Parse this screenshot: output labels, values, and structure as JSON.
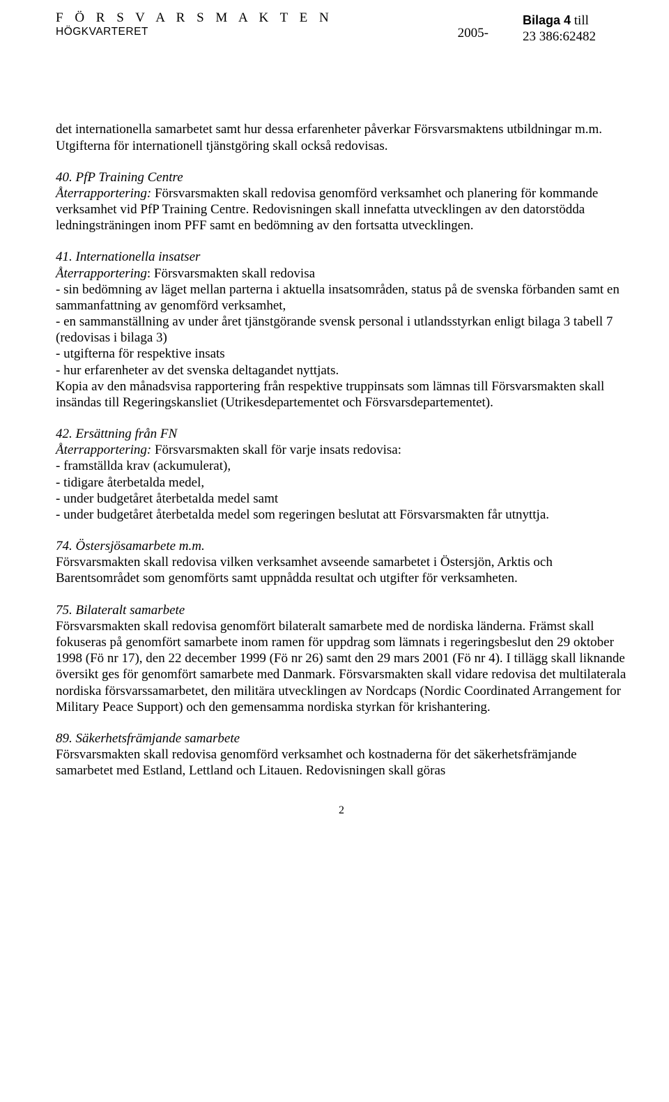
{
  "header": {
    "org_name": "F Ö R S V A R S M A K T E N",
    "subunit": "HÖGKVARTERET",
    "year": "2005-",
    "bilaga_label": "Bilaga 4",
    "bilaga_suffix": " till",
    "doc_number": "23 386:62482"
  },
  "intro": {
    "text": "det internationella samarbetet samt hur dessa erfarenheter påverkar Försvarsmaktens utbildningar m.m. Utgifterna för internationell tjänstgöring skall också redovisas."
  },
  "s40": {
    "title": "40. PfP Training Centre",
    "body": "Återrapportering: Försvarsmakten skall redovisa genomförd verksamhet och planering för kommande verksamhet vid PfP Training Centre. Redovisningen skall innefatta utvecklingen av den datorstödda ledningsträningen inom PFF samt en bedömning av den fortsatta utvecklingen."
  },
  "s41": {
    "title": "41. Internationella insatser",
    "lead": "Återrapportering: Försvarsmakten skall redovisa",
    "b1": "- sin bedömning av läget mellan parterna i aktuella insatsområden, status på de svenska förbanden samt en sammanfattning av genomförd verksamhet,",
    "b2": "- en sammanställning av under året tjänstgörande svensk personal i utlandsstyrkan enligt bilaga 3 tabell 7 (redovisas i bilaga 3)",
    "b3": "- utgifterna för respektive insats",
    "b4": "- hur erfarenheter av det svenska deltagandet nyttjats.",
    "tail": "Kopia av den månadsvisa rapportering från respektive truppinsats som lämnas till Försvarsmakten skall insändas till Regeringskansliet (Utrikesdepartementet och Försvarsdepartementet)."
  },
  "s42": {
    "title": "42. Ersättning från FN",
    "lead": "Återrapportering: Försvarsmakten skall för varje insats redovisa:",
    "b1": "- framställda krav (ackumulerat),",
    "b2": "- tidigare återbetalda medel,",
    "b3": "- under budgetåret återbetalda medel samt",
    "b4": "- under budgetåret återbetalda medel som regeringen beslutat att Försvarsmakten får utnyttja."
  },
  "s74": {
    "title": "74. Östersjösamarbete m.m.",
    "body": "Försvarsmakten skall redovisa vilken verksamhet avseende samarbetet i Östersjön, Arktis och Barentsområdet som genomförts samt uppnådda resultat och utgifter för verksamheten."
  },
  "s75": {
    "title": "75. Bilateralt samarbete",
    "body": "Försvarsmakten skall redovisa genomfört bilateralt samarbete med de nordiska länderna. Främst skall fokuseras på genomfört samarbete inom ramen för uppdrag som lämnats i regeringsbeslut den 29 oktober 1998 (Fö nr 17), den 22 december 1999 (Fö nr 26) samt den 29 mars 2001 (Fö nr 4). I tillägg skall liknande översikt ges för genomfört samarbete med Danmark. Försvarsmakten skall vidare redovisa det multilaterala nordiska försvarssamarbetet, den militära utvecklingen av Nordcaps (Nordic Coordinated Arrangement for Military Peace Support) och den gemensamma nordiska styrkan för krishantering."
  },
  "s89": {
    "title": "89. Säkerhetsfrämjande samarbete",
    "body": "Försvarsmakten skall redovisa genomförd verksamhet och kostnaderna för det säkerhetsfrämjande samarbetet med Estland, Lettland och Litauen. Redovisningen skall göras"
  },
  "page_number": "2"
}
